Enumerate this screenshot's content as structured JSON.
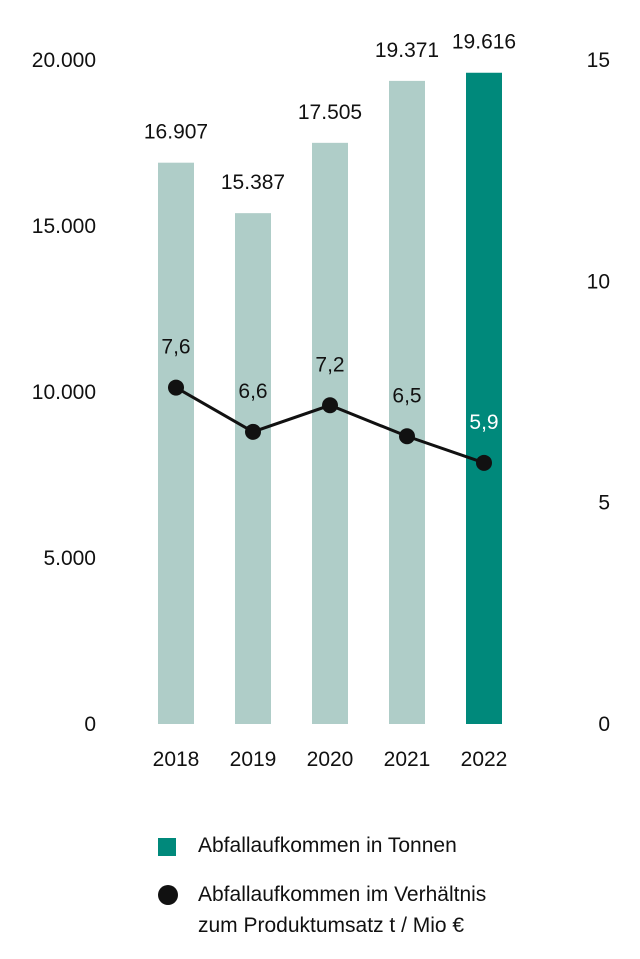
{
  "colors": {
    "bar_light": "#afcdc8",
    "bar_highlight": "#00897b",
    "line": "#111111",
    "text": "#111111",
    "label_on_dark": "#ffffff"
  },
  "chart_data": {
    "type": "bar+line",
    "categories": [
      "2018",
      "2019",
      "2020",
      "2021",
      "2022"
    ],
    "highlight_category": "2022",
    "series": [
      {
        "name": "Abfallaufkommen in Tonnen",
        "type": "bar",
        "axis": "left",
        "values": [
          16907,
          15387,
          17505,
          19371,
          19616
        ],
        "labels": [
          "16.907",
          "15.387",
          "17.505",
          "19.371",
          "19.616"
        ]
      },
      {
        "name": "Abfallaufkommen im Verhältnis zum Produktumsatz t / Mio €",
        "type": "line",
        "axis": "right",
        "values": [
          7.6,
          6.6,
          7.2,
          6.5,
          5.9
        ],
        "labels": [
          "7,6",
          "6,6",
          "7,2",
          "6,5",
          "5,9"
        ]
      }
    ],
    "y_left": {
      "range": [
        0,
        20000
      ],
      "ticks": [
        0,
        5000,
        10000,
        15000,
        20000
      ],
      "tick_labels": [
        "0",
        "5.000",
        "10.000",
        "15.000",
        "20.000"
      ]
    },
    "y_right": {
      "range": [
        0,
        15
      ],
      "ticks": [
        0,
        5,
        10,
        15
      ],
      "tick_labels": [
        "0",
        "5",
        "10",
        "15"
      ]
    },
    "grid": false,
    "legend_position": "bottom"
  },
  "legend": {
    "items": [
      {
        "marker": "square",
        "lines": [
          "Abfallaufkommen in Tonnen"
        ]
      },
      {
        "marker": "dot",
        "lines": [
          "Abfallaufkommen im Verhältnis",
          "zum Produktumsatz t / Mio €"
        ]
      }
    ]
  }
}
